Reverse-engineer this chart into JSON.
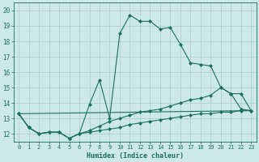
{
  "xlabel": "Humidex (Indice chaleur)",
  "xlim": [
    -0.5,
    23.5
  ],
  "ylim": [
    11.5,
    20.5
  ],
  "yticks": [
    12,
    13,
    14,
    15,
    16,
    17,
    18,
    19,
    20
  ],
  "xticks": [
    0,
    1,
    2,
    3,
    4,
    5,
    6,
    7,
    8,
    9,
    10,
    11,
    12,
    13,
    14,
    15,
    16,
    17,
    18,
    19,
    20,
    21,
    22,
    23
  ],
  "bg_color": "#cce8ea",
  "grid_color": "#b0d0d4",
  "line_color": "#1a7060",
  "line1_x": [
    0,
    1,
    2,
    3,
    4,
    5,
    6,
    7,
    8,
    9,
    10,
    11,
    12,
    13,
    14,
    15,
    16,
    17,
    18,
    19,
    20,
    21,
    22,
    23
  ],
  "line1_y": [
    13.3,
    12.4,
    12.0,
    12.1,
    12.1,
    11.7,
    12.0,
    13.9,
    15.5,
    13.0,
    18.5,
    19.7,
    19.3,
    19.3,
    18.8,
    18.9,
    17.8,
    16.6,
    16.5,
    16.4,
    15.0,
    14.6,
    13.6,
    13.5
  ],
  "line2_x": [
    0,
    1,
    2,
    3,
    4,
    5,
    6,
    7,
    8,
    9,
    10,
    11,
    12,
    13,
    14,
    15,
    16,
    17,
    18,
    19,
    20,
    21,
    22,
    23
  ],
  "line2_y": [
    13.3,
    12.4,
    12.0,
    12.1,
    12.1,
    11.7,
    12.0,
    12.2,
    12.5,
    12.8,
    13.0,
    13.2,
    13.4,
    13.5,
    13.6,
    13.8,
    14.0,
    14.2,
    14.3,
    14.5,
    15.0,
    14.6,
    14.6,
    13.5
  ],
  "line3_x": [
    0,
    1,
    2,
    3,
    4,
    5,
    6,
    7,
    8,
    9,
    10,
    11,
    12,
    13,
    14,
    15,
    16,
    17,
    18,
    19,
    20,
    21,
    22,
    23
  ],
  "line3_y": [
    13.3,
    12.4,
    12.0,
    12.1,
    12.1,
    11.7,
    12.0,
    12.1,
    12.2,
    12.3,
    12.4,
    12.6,
    12.7,
    12.8,
    12.9,
    13.0,
    13.1,
    13.2,
    13.3,
    13.3,
    13.4,
    13.4,
    13.5,
    13.5
  ],
  "line4_x": [
    0,
    23
  ],
  "line4_y": [
    13.3,
    13.5
  ]
}
